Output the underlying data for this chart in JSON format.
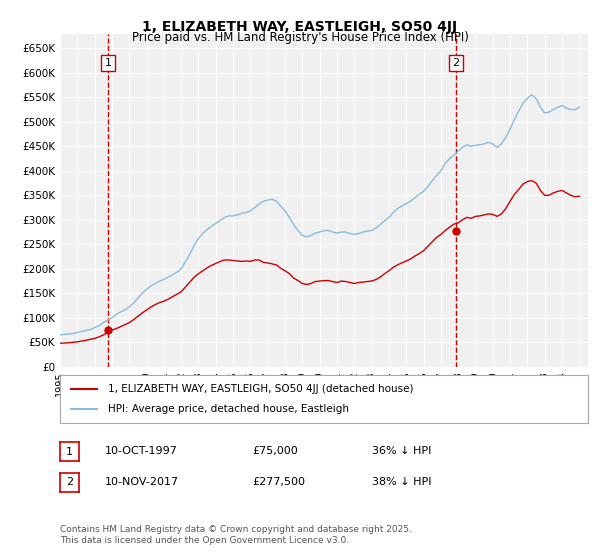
{
  "title": "1, ELIZABETH WAY, EASTLEIGH, SO50 4JJ",
  "subtitle": "Price paid vs. HM Land Registry's House Price Index (HPI)",
  "title_fontsize": 11,
  "subtitle_fontsize": 9,
  "background_color": "#ffffff",
  "plot_bg_color": "#f0f0f0",
  "grid_color": "#ffffff",
  "red_color": "#cc0000",
  "blue_color": "#88bbdd",
  "vline_color": "#cc0000",
  "legend_label_red": "1, ELIZABETH WAY, EASTLEIGH, SO50 4JJ (detached house)",
  "legend_label_blue": "HPI: Average price, detached house, Eastleigh",
  "ylabel": "",
  "xlabel": "",
  "ylim": [
    0,
    680000
  ],
  "yticks": [
    0,
    50000,
    100000,
    150000,
    200000,
    250000,
    300000,
    350000,
    400000,
    450000,
    500000,
    550000,
    600000,
    650000
  ],
  "ytick_labels": [
    "£0",
    "£50K",
    "£100K",
    "£150K",
    "£200K",
    "£250K",
    "£300K",
    "£350K",
    "£400K",
    "£450K",
    "£500K",
    "£550K",
    "£600K",
    "£650K"
  ],
  "xmin": 1995.0,
  "xmax": 2025.5,
  "sale1_x": 1997.78,
  "sale1_y": 75000,
  "sale1_label": "1",
  "sale1_date": "10-OCT-1997",
  "sale1_price": "£75,000",
  "sale1_hpi": "36% ↓ HPI",
  "sale2_x": 2017.87,
  "sale2_y": 277500,
  "sale2_label": "2",
  "sale2_date": "10-NOV-2017",
  "sale2_price": "£277,500",
  "sale2_hpi": "38% ↓ HPI",
  "footnote": "Contains HM Land Registry data © Crown copyright and database right 2025.\nThis data is licensed under the Open Government Licence v3.0.",
  "hpi_data_x": [
    1995.0,
    1995.25,
    1995.5,
    1995.75,
    1996.0,
    1996.25,
    1996.5,
    1996.75,
    1997.0,
    1997.25,
    1997.5,
    1997.75,
    1998.0,
    1998.25,
    1998.5,
    1998.75,
    1999.0,
    1999.25,
    1999.5,
    1999.75,
    2000.0,
    2000.25,
    2000.5,
    2000.75,
    2001.0,
    2001.25,
    2001.5,
    2001.75,
    2002.0,
    2002.25,
    2002.5,
    2002.75,
    2003.0,
    2003.25,
    2003.5,
    2003.75,
    2004.0,
    2004.25,
    2004.5,
    2004.75,
    2005.0,
    2005.25,
    2005.5,
    2005.75,
    2006.0,
    2006.25,
    2006.5,
    2006.75,
    2007.0,
    2007.25,
    2007.5,
    2007.75,
    2008.0,
    2008.25,
    2008.5,
    2008.75,
    2009.0,
    2009.25,
    2009.5,
    2009.75,
    2010.0,
    2010.25,
    2010.5,
    2010.75,
    2011.0,
    2011.25,
    2011.5,
    2011.75,
    2012.0,
    2012.25,
    2012.5,
    2012.75,
    2013.0,
    2013.25,
    2013.5,
    2013.75,
    2014.0,
    2014.25,
    2014.5,
    2014.75,
    2015.0,
    2015.25,
    2015.5,
    2015.75,
    2016.0,
    2016.25,
    2016.5,
    2016.75,
    2017.0,
    2017.25,
    2017.5,
    2017.75,
    2018.0,
    2018.25,
    2018.5,
    2018.75,
    2019.0,
    2019.25,
    2019.5,
    2019.75,
    2020.0,
    2020.25,
    2020.5,
    2020.75,
    2021.0,
    2021.25,
    2021.5,
    2021.75,
    2022.0,
    2022.25,
    2022.5,
    2022.75,
    2023.0,
    2023.25,
    2023.5,
    2023.75,
    2024.0,
    2024.25,
    2024.5,
    2024.75,
    2025.0
  ],
  "hpi_data_y": [
    65000,
    66000,
    67000,
    68000,
    70000,
    72000,
    74000,
    76000,
    80000,
    84000,
    90000,
    95000,
    100000,
    107000,
    112000,
    116000,
    122000,
    130000,
    140000,
    150000,
    158000,
    165000,
    170000,
    175000,
    178000,
    183000,
    188000,
    193000,
    200000,
    215000,
    230000,
    248000,
    262000,
    272000,
    280000,
    287000,
    293000,
    298000,
    305000,
    308000,
    308000,
    310000,
    313000,
    315000,
    318000,
    325000,
    332000,
    338000,
    340000,
    342000,
    338000,
    328000,
    318000,
    305000,
    290000,
    278000,
    268000,
    265000,
    268000,
    273000,
    275000,
    278000,
    278000,
    275000,
    273000,
    275000,
    275000,
    272000,
    270000,
    272000,
    275000,
    277000,
    278000,
    283000,
    290000,
    298000,
    305000,
    315000,
    323000,
    328000,
    333000,
    338000,
    345000,
    352000,
    358000,
    368000,
    380000,
    390000,
    400000,
    415000,
    425000,
    432000,
    440000,
    448000,
    453000,
    450000,
    452000,
    453000,
    455000,
    458000,
    455000,
    448000,
    455000,
    468000,
    485000,
    505000,
    522000,
    538000,
    548000,
    555000,
    548000,
    530000,
    518000,
    520000,
    525000,
    530000,
    533000,
    528000,
    525000,
    525000,
    530000
  ],
  "red_data_x": [
    1995.0,
    1995.25,
    1995.5,
    1995.75,
    1996.0,
    1996.25,
    1996.5,
    1996.75,
    1997.0,
    1997.25,
    1997.5,
    1997.75,
    1998.0,
    1998.25,
    1998.5,
    1998.75,
    1999.0,
    1999.25,
    1999.5,
    1999.75,
    2000.0,
    2000.25,
    2000.5,
    2000.75,
    2001.0,
    2001.25,
    2001.5,
    2001.75,
    2002.0,
    2002.25,
    2002.5,
    2002.75,
    2003.0,
    2003.25,
    2003.5,
    2003.75,
    2004.0,
    2004.25,
    2004.5,
    2004.75,
    2005.0,
    2005.25,
    2005.5,
    2005.75,
    2006.0,
    2006.25,
    2006.5,
    2006.75,
    2007.0,
    2007.25,
    2007.5,
    2007.75,
    2008.0,
    2008.25,
    2008.5,
    2008.75,
    2009.0,
    2009.25,
    2009.5,
    2009.75,
    2010.0,
    2010.25,
    2010.5,
    2010.75,
    2011.0,
    2011.25,
    2011.5,
    2011.75,
    2012.0,
    2012.25,
    2012.5,
    2012.75,
    2013.0,
    2013.25,
    2013.5,
    2013.75,
    2014.0,
    2014.25,
    2014.5,
    2014.75,
    2015.0,
    2015.25,
    2015.5,
    2015.75,
    2016.0,
    2016.25,
    2016.5,
    2016.75,
    2017.0,
    2017.25,
    2017.5,
    2017.75,
    2018.0,
    2018.25,
    2018.5,
    2018.75,
    2019.0,
    2019.25,
    2019.5,
    2019.75,
    2020.0,
    2020.25,
    2020.5,
    2020.75,
    2021.0,
    2021.25,
    2021.5,
    2021.75,
    2022.0,
    2022.25,
    2022.5,
    2022.75,
    2023.0,
    2023.25,
    2023.5,
    2023.75,
    2024.0,
    2024.25,
    2024.5,
    2024.75,
    2025.0
  ],
  "red_data_y": [
    48000,
    48500,
    49000,
    50000,
    51000,
    52500,
    54000,
    56000,
    58000,
    61000,
    65000,
    70000,
    75000,
    78000,
    82000,
    86000,
    90000,
    96000,
    103000,
    110000,
    116000,
    122000,
    127000,
    131000,
    134000,
    138000,
    143000,
    148000,
    153000,
    163000,
    173000,
    183000,
    190000,
    196000,
    202000,
    207000,
    211000,
    215000,
    218000,
    218000,
    217000,
    216000,
    215000,
    216000,
    215000,
    218000,
    218000,
    213000,
    212000,
    210000,
    208000,
    201000,
    196000,
    190000,
    181000,
    176000,
    170000,
    168000,
    170000,
    174000,
    175000,
    176000,
    176000,
    174000,
    172000,
    175000,
    174000,
    172000,
    170000,
    172000,
    173000,
    174000,
    175000,
    178000,
    183000,
    190000,
    196000,
    203000,
    208000,
    212000,
    216000,
    220000,
    226000,
    231000,
    237000,
    246000,
    255000,
    264000,
    270000,
    278000,
    285000,
    291000,
    294000,
    300000,
    305000,
    303000,
    307000,
    308000,
    310000,
    312000,
    311000,
    307000,
    312000,
    323000,
    338000,
    352000,
    362000,
    373000,
    378000,
    380000,
    375000,
    360000,
    350000,
    350000,
    355000,
    358000,
    360000,
    355000,
    350000,
    347000,
    348000
  ]
}
